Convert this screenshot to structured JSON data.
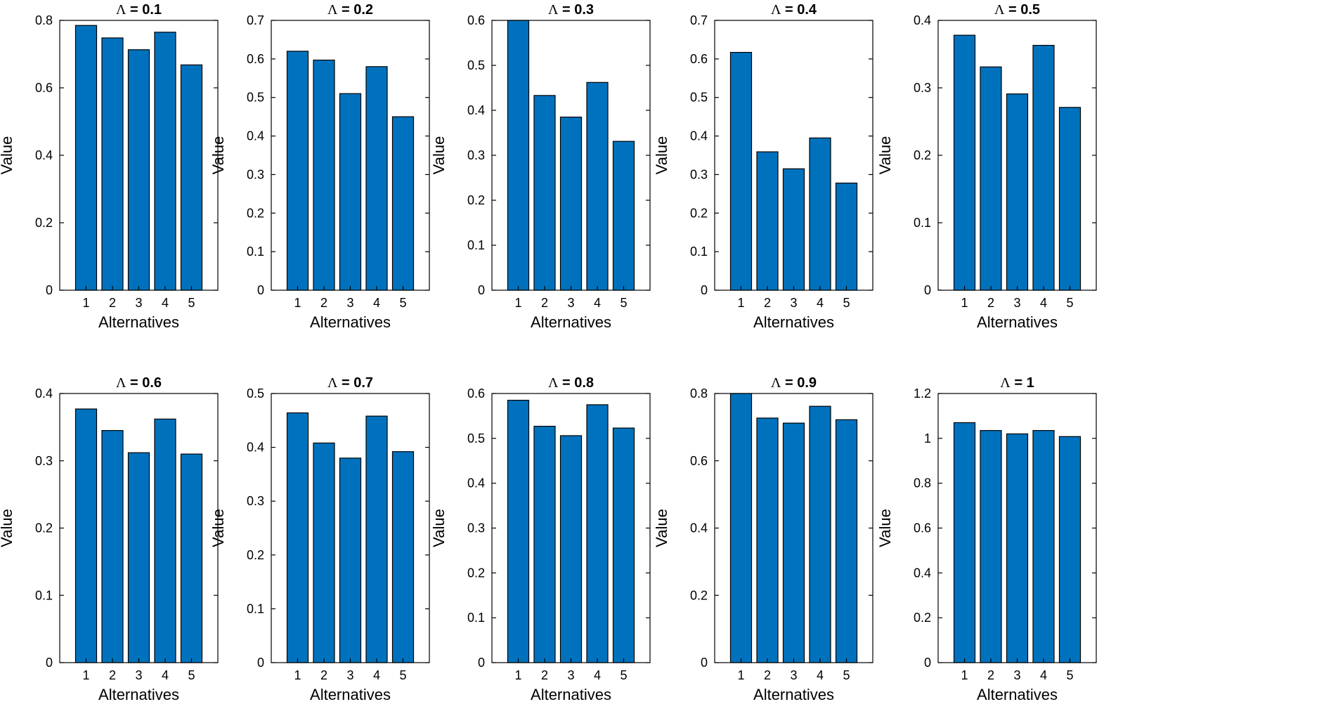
{
  "figure": {
    "bar_color": "#0072BD",
    "edge_color": "#000000"
  },
  "chart_data": [
    {
      "type": "bar",
      "title_symbol": "Λ",
      "title_value": "= 0.1",
      "xlabel": "Alternatives",
      "ylabel": "Value",
      "categories": [
        "1",
        "2",
        "3",
        "4",
        "5"
      ],
      "values": [
        0.785,
        0.748,
        0.713,
        0.765,
        0.668
      ],
      "ylim": [
        0,
        0.8
      ],
      "yticks": [
        "0",
        "0.2",
        "0.4",
        "0.6",
        "0.8"
      ],
      "ytick_values": [
        0,
        0.2,
        0.4,
        0.6,
        0.8
      ]
    },
    {
      "type": "bar",
      "title_symbol": "Λ",
      "title_value": "= 0.2",
      "xlabel": "Alternatives",
      "ylabel": "Value",
      "categories": [
        "1",
        "2",
        "3",
        "4",
        "5"
      ],
      "values": [
        0.62,
        0.597,
        0.51,
        0.58,
        0.45
      ],
      "ylim": [
        0,
        0.7
      ],
      "yticks": [
        "0",
        "0.1",
        "0.2",
        "0.3",
        "0.4",
        "0.5",
        "0.6",
        "0.7"
      ],
      "ytick_values": [
        0,
        0.1,
        0.2,
        0.3,
        0.4,
        0.5,
        0.6,
        0.7
      ]
    },
    {
      "type": "bar",
      "title_symbol": "Λ",
      "title_value": "= 0.3",
      "xlabel": "Alternatives",
      "ylabel": "Value",
      "categories": [
        "1",
        "2",
        "3",
        "4",
        "5"
      ],
      "values": [
        0.6,
        0.433,
        0.385,
        0.462,
        0.331
      ],
      "ylim": [
        0,
        0.6
      ],
      "yticks": [
        "0",
        "0.1",
        "0.2",
        "0.3",
        "0.4",
        "0.5",
        "0.6"
      ],
      "ytick_values": [
        0,
        0.1,
        0.2,
        0.3,
        0.4,
        0.5,
        0.6
      ]
    },
    {
      "type": "bar",
      "title_symbol": "Λ",
      "title_value": "= 0.4",
      "xlabel": "Alternatives",
      "ylabel": "Value",
      "categories": [
        "1",
        "2",
        "3",
        "4",
        "5"
      ],
      "values": [
        0.617,
        0.359,
        0.315,
        0.395,
        0.278
      ],
      "ylim": [
        0,
        0.7
      ],
      "yticks": [
        "0",
        "0.1",
        "0.2",
        "0.3",
        "0.4",
        "0.5",
        "0.6",
        "0.7"
      ],
      "ytick_values": [
        0,
        0.1,
        0.2,
        0.3,
        0.4,
        0.5,
        0.6,
        0.7
      ]
    },
    {
      "type": "bar",
      "title_symbol": "Λ",
      "title_value": "= 0.5",
      "xlabel": "Alternatives",
      "ylabel": "Value",
      "categories": [
        "1",
        "2",
        "3",
        "4",
        "5"
      ],
      "values": [
        0.378,
        0.331,
        0.291,
        0.363,
        0.271
      ],
      "ylim": [
        0,
        0.4
      ],
      "yticks": [
        "0",
        "0.1",
        "0.2",
        "0.3",
        "0.4"
      ],
      "ytick_values": [
        0,
        0.1,
        0.2,
        0.3,
        0.4
      ]
    },
    {
      "type": "bar",
      "title_symbol": "Λ",
      "title_value": "= 0.6",
      "xlabel": "Alternatives",
      "ylabel": "Value",
      "categories": [
        "1",
        "2",
        "3",
        "4",
        "5"
      ],
      "values": [
        0.377,
        0.345,
        0.312,
        0.362,
        0.31
      ],
      "ylim": [
        0,
        0.4
      ],
      "yticks": [
        "0",
        "0.1",
        "0.2",
        "0.3",
        "0.4"
      ],
      "ytick_values": [
        0,
        0.1,
        0.2,
        0.3,
        0.4
      ]
    },
    {
      "type": "bar",
      "title_symbol": "Λ",
      "title_value": "= 0.7",
      "xlabel": "Alternatives",
      "ylabel": "Value",
      "categories": [
        "1",
        "2",
        "3",
        "4",
        "5"
      ],
      "values": [
        0.464,
        0.408,
        0.38,
        0.458,
        0.392
      ],
      "ylim": [
        0,
        0.5
      ],
      "yticks": [
        "0",
        "0.1",
        "0.2",
        "0.3",
        "0.4",
        "0.5"
      ],
      "ytick_values": [
        0,
        0.1,
        0.2,
        0.3,
        0.4,
        0.5
      ]
    },
    {
      "type": "bar",
      "title_symbol": "Λ",
      "title_value": "= 0.8",
      "xlabel": "Alternatives",
      "ylabel": "Value",
      "categories": [
        "1",
        "2",
        "3",
        "4",
        "5"
      ],
      "values": [
        0.585,
        0.527,
        0.506,
        0.575,
        0.523
      ],
      "ylim": [
        0,
        0.6
      ],
      "yticks": [
        "0",
        "0.1",
        "0.2",
        "0.3",
        "0.4",
        "0.5",
        "0.6"
      ],
      "ytick_values": [
        0,
        0.1,
        0.2,
        0.3,
        0.4,
        0.5,
        0.6
      ]
    },
    {
      "type": "bar",
      "title_symbol": "Λ",
      "title_value": "= 0.9",
      "xlabel": "Alternatives",
      "ylabel": "Value",
      "categories": [
        "1",
        "2",
        "3",
        "4",
        "5"
      ],
      "values": [
        0.8,
        0.727,
        0.712,
        0.762,
        0.722
      ],
      "ylim": [
        0,
        0.8
      ],
      "yticks": [
        "0",
        "0.2",
        "0.4",
        "0.6",
        "0.8"
      ],
      "ytick_values": [
        0,
        0.2,
        0.4,
        0.6,
        0.8
      ]
    },
    {
      "type": "bar",
      "title_symbol": "Λ",
      "title_value": "= 1",
      "xlabel": "Alternatives",
      "ylabel": "Value",
      "categories": [
        "1",
        "2",
        "3",
        "4",
        "5"
      ],
      "values": [
        1.07,
        1.035,
        1.02,
        1.035,
        1.008
      ],
      "ylim": [
        0,
        1.2
      ],
      "yticks": [
        "0",
        "0.2",
        "0.4",
        "0.6",
        "0.8",
        "1",
        "1.2"
      ],
      "ytick_values": [
        0,
        0.2,
        0.4,
        0.6,
        0.8,
        1,
        1.2
      ]
    }
  ]
}
